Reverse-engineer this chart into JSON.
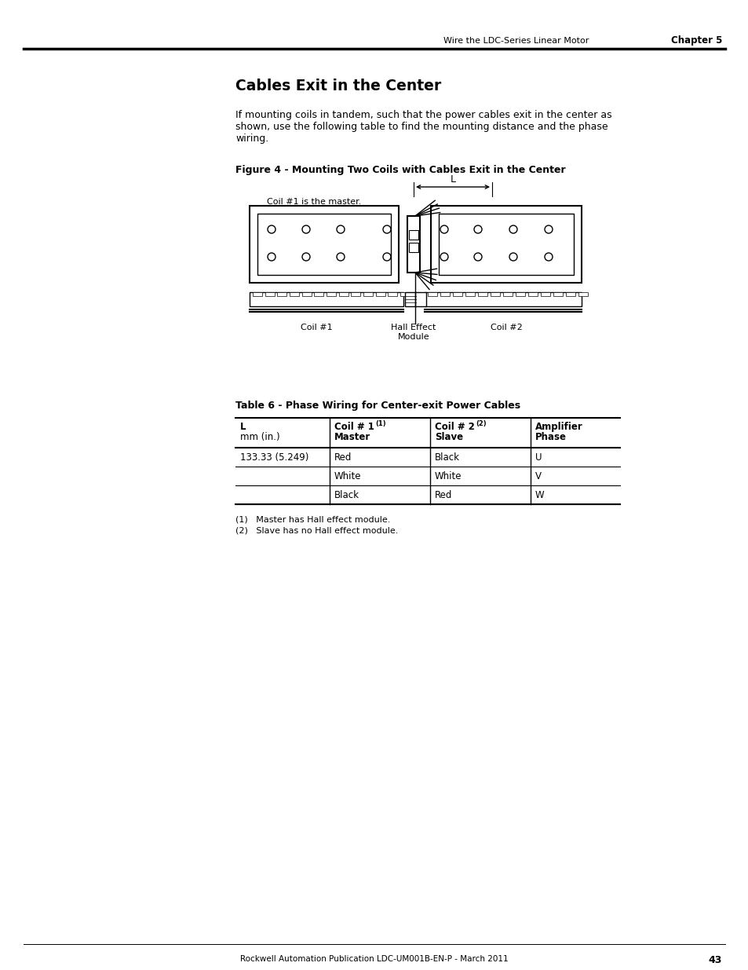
{
  "page_title_right": "Wire the LDC-Series Linear Motor",
  "chapter": "Chapter 5",
  "section_title": "Cables Exit in the Center",
  "body_text": "If mounting coils in tandem, such that the power cables exit in the center as\nshown, use the following table to find the mounting distance and the phase\nwiring.",
  "figure_caption": "Figure 4 - Mounting Two Coils with Cables Exit in the Center",
  "figure_note": "Coil #1 is the master.",
  "coil1_label": "Coil #1",
  "hall_label": "Hall Effect\nModule",
  "coil2_label": "Coil #2",
  "table_title": "Table 6 - Phase Wiring for Center-exit Power Cables",
  "table_headers_line1": [
    "L",
    "Coil # 1",
    "Coil # 2",
    "Amplifier"
  ],
  "table_headers_line2": [
    "mm (in.)",
    "Master",
    "Slave",
    "Phase"
  ],
  "table_headers_super": [
    "",
    "(1)",
    "(2)",
    ""
  ],
  "table_data": [
    [
      "133.33 (5.249)",
      "Red",
      "Black",
      "U"
    ],
    [
      "",
      "White",
      "White",
      "V"
    ],
    [
      "",
      "Black",
      "Red",
      "W"
    ]
  ],
  "footnote1": "(1)   Master has Hall effect module.",
  "footnote2": "(2)   Slave has no Hall effect module.",
  "footer_text": "Rockwell Automation Publication LDC-UM001B-EN-P - March 2011",
  "page_number": "43",
  "bg_color": "#ffffff"
}
